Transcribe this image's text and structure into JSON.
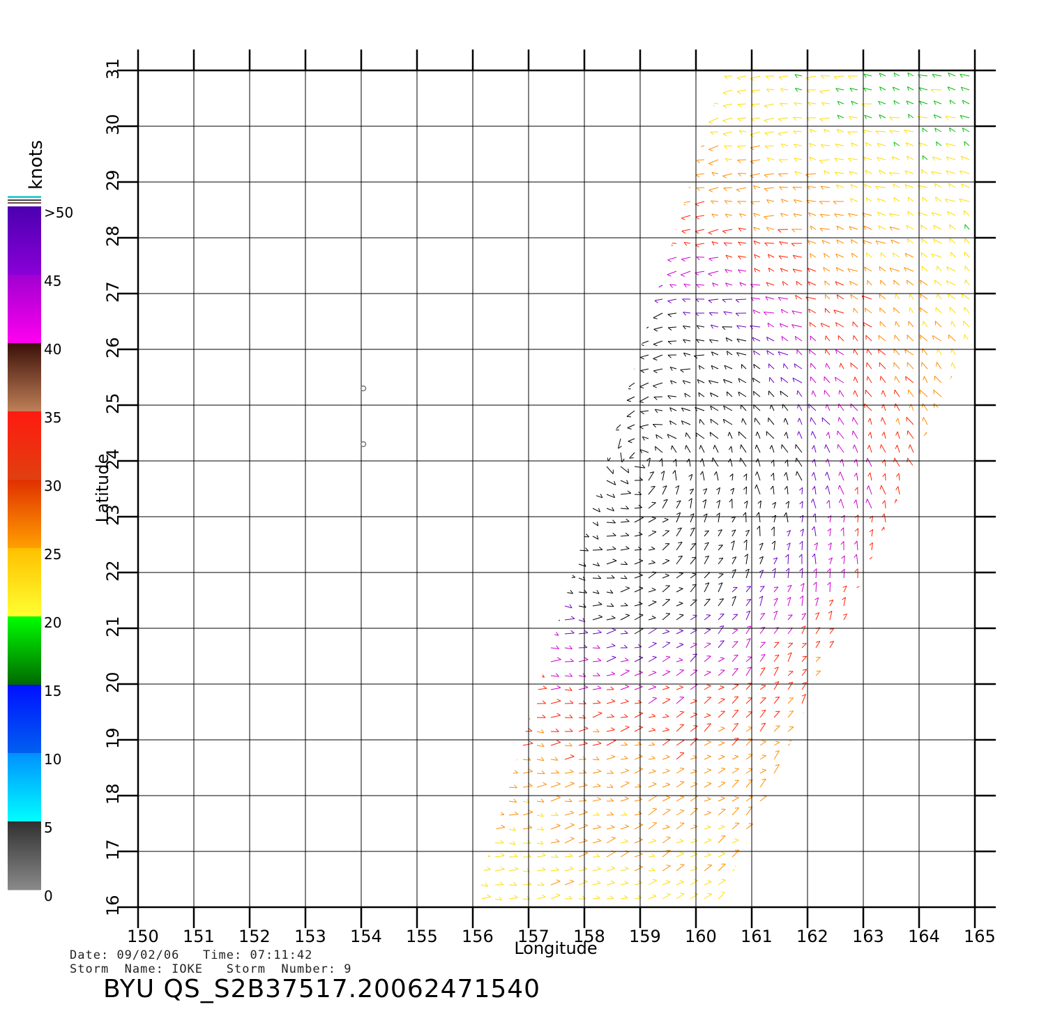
{
  "map": {
    "lon_range": [
      150,
      165
    ],
    "lat_range": [
      16,
      31
    ],
    "lon_ticks": [
      "150",
      "151",
      "152",
      "153",
      "154",
      "155",
      "156",
      "157",
      "158",
      "159",
      "160",
      "161",
      "162",
      "163",
      "164",
      "165"
    ],
    "lat_ticks": [
      "16",
      "17",
      "18",
      "19",
      "20",
      "21",
      "22",
      "23",
      "24",
      "25",
      "26",
      "27",
      "28",
      "29",
      "30",
      "31"
    ],
    "x_label": "Longitude",
    "y_label": "Latitude",
    "grid": true
  },
  "colorbar": {
    "title": "knots",
    "labels": [
      ">50",
      "45",
      "40",
      "35",
      "30",
      "25",
      "20",
      "15",
      "10",
      "5",
      "0"
    ],
    "bands": [
      {
        "range": [
          45,
          50
        ],
        "colors": [
          "#4b00b0",
          "#8a00d8"
        ]
      },
      {
        "range": [
          40,
          45
        ],
        "colors": [
          "#a000d0",
          "#ff00f0"
        ]
      },
      {
        "range": [
          35,
          40
        ],
        "colors": [
          "#3a1008",
          "#c08058"
        ]
      },
      {
        "range": [
          30,
          35
        ],
        "colors": [
          "#ff1a10",
          "#e04010"
        ]
      },
      {
        "range": [
          25,
          30
        ],
        "colors": [
          "#e03000",
          "#ffa000"
        ]
      },
      {
        "range": [
          20,
          25
        ],
        "colors": [
          "#ffc000",
          "#ffff30"
        ]
      },
      {
        "range": [
          15,
          20
        ],
        "colors": [
          "#00ff00",
          "#006800"
        ]
      },
      {
        "range": [
          10,
          15
        ],
        "colors": [
          "#0010ff",
          "#0060f0"
        ]
      },
      {
        "range": [
          5,
          10
        ],
        "colors": [
          "#0090ff",
          "#00ffff"
        ]
      },
      {
        "range": [
          0,
          5
        ],
        "colors": [
          "#303030",
          "#8a8a8a"
        ]
      }
    ]
  },
  "swath": {
    "corners_lonlat": [
      [
        156.0,
        16.0
      ],
      [
        160.4,
        16.0
      ],
      [
        167.0,
        31.0
      ],
      [
        160.5,
        31.0
      ]
    ]
  },
  "markers": [
    {
      "lon": 154.0,
      "lat": 25.3
    },
    {
      "lon": 154.0,
      "lat": 24.3
    }
  ],
  "wind_field": {
    "center": {
      "lon": 159.0,
      "lat": 24.0
    },
    "color_ramp": [
      "#0000ff",
      "#00bb00",
      "#ffdd00",
      "#ff8c00",
      "#ff2000",
      "#cc00cc",
      "#6a00c0",
      "#000000"
    ]
  },
  "info": {
    "date_label": "Date:",
    "date": "09/02/06",
    "time_label": "Time:",
    "time": "07:11:42",
    "storm_name_label": "Storm  Name:",
    "storm_name": "IOKE",
    "storm_number_label": "Storm  Number:",
    "storm_number": "9"
  },
  "file_id": "BYU  QS_S2B37517.20062471540"
}
